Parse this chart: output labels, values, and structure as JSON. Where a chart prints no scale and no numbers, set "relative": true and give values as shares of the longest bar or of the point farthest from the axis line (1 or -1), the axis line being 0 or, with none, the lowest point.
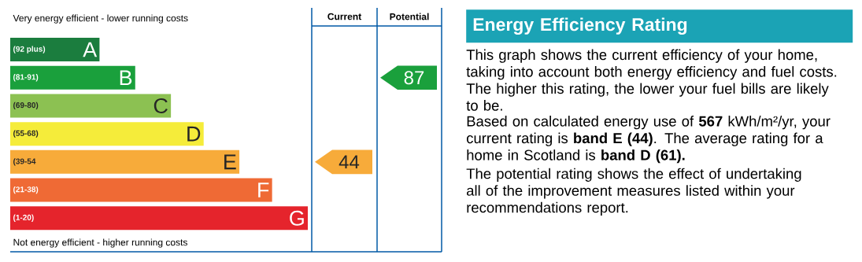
{
  "chart_data": [
    {
      "type": "bar",
      "orientation": "horizontal",
      "relative": true,
      "title": "Very energy efficient - lower running costs",
      "categories": [
        "A",
        "B",
        "C",
        "D",
        "E",
        "F",
        "G"
      ],
      "values": [
        0.3,
        0.42,
        0.54,
        0.65,
        0.77,
        0.88,
        1
      ],
      "colors": [
        "#1b7d3e",
        "#1aa03c",
        "#8cc152",
        "#f5ec3a",
        "#f7ab3a",
        "#ef6a35",
        "#e5242c"
      ],
      "annotations": [
        "Not energy efficient - higher running costs",
        "Current",
        "Potential",
        "44",
        "87",
        "(92 plus)",
        "(81-91)",
        "(69-80)",
        "(55-68)",
        "(39-54",
        "(21-38)",
        "(1-20)"
      ]
    },
    {
      "type": "other",
      "title": "Energy Efficiency Rating",
      "annotations": [
        "This graph shows the current efficiency of your home, taking into account both energy efficiency and fuel costs. The higher this rating, the lower your fuel bills are likely to be.",
        "Based on calculated energy use of **567** kWh/m²/yr, your current rating is **band E (44)**. The average rating for a home in Scotland is **band D (61).**",
        "The potential rating shows the effect of undertaking all of the improvement measures listed within your recommendations report."
      ]
    }
  ]
}
